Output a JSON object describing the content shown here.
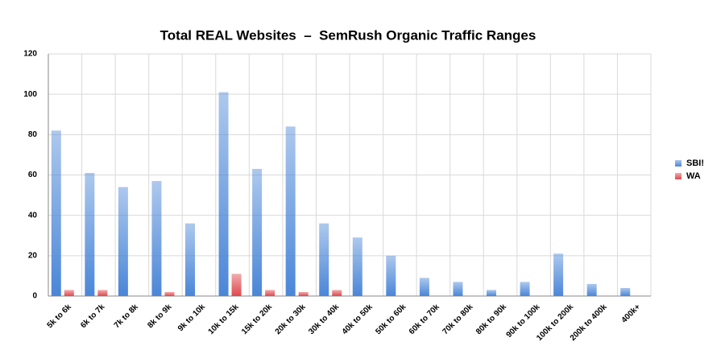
{
  "chart_data": {
    "type": "bar",
    "title": "Total REAL Websites  –  SemRush Organic Traffic Ranges",
    "categories": [
      "5k to 6k",
      "6k to 7k",
      "7k to 8k",
      "8k to 9k",
      "9k to 10k",
      "10k to 15k",
      "15k to 20k",
      "20k to 30k",
      "30k to 40k",
      "40k to 50k",
      "50k to 60k",
      "60k to 70k",
      "70k to 80k",
      "80k to 90k",
      "90k to 100k",
      "100k to 200k",
      "200k to 400k",
      "400k+"
    ],
    "series": [
      {
        "name": "SBI!",
        "color": "#4a86d8",
        "values": [
          82,
          61,
          54,
          57,
          36,
          101,
          63,
          84,
          36,
          29,
          20,
          9,
          7,
          3,
          7,
          21,
          6,
          4
        ]
      },
      {
        "name": "WA",
        "color": "#e0474c",
        "values": [
          3,
          3,
          0,
          2,
          0,
          11,
          3,
          2,
          3,
          0,
          0,
          0,
          0,
          0,
          0,
          0,
          0,
          0
        ]
      }
    ],
    "ylim": [
      0,
      120
    ],
    "yticks": [
      0,
      20,
      40,
      60,
      80,
      100,
      120
    ],
    "grid": true
  }
}
